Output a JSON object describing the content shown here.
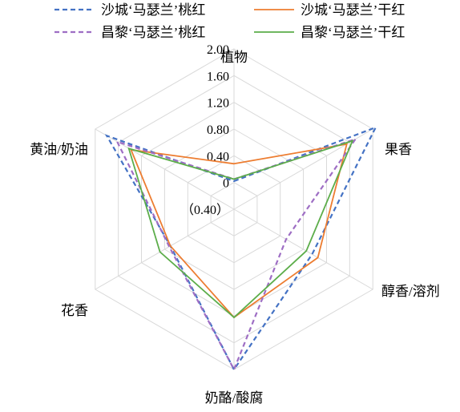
{
  "chart_data": {
    "type": "radar",
    "axes": [
      "植物",
      "果香",
      "醇香/溶剂",
      "奶酪/酸腐",
      "花香",
      "黄油/奶油"
    ],
    "ticks": [
      "2.00",
      "1.60",
      "1.20",
      "0.80",
      "0.40",
      "0",
      "（0.40）"
    ],
    "tick_values": [
      2.0,
      1.6,
      1.2,
      0.8,
      0.4,
      0,
      -0.4
    ],
    "range": [
      -0.4,
      2.0
    ],
    "legend_position": "top",
    "series": [
      {
        "name": "沙城‘马瑟兰’桃红",
        "color": "#4472c4",
        "dash": "dashed",
        "values": [
          0.02,
          2.05,
          0.95,
          2.0,
          0.7,
          1.8
        ]
      },
      {
        "name": "沙城‘马瑟兰’干红",
        "color": "#ed7d31",
        "dash": "solid",
        "values": [
          0.28,
          1.55,
          1.05,
          1.22,
          0.7,
          1.38
        ]
      },
      {
        "name": "昌黎‘马瑟兰’桃红",
        "color": "#9e6ec4",
        "dash": "dashed",
        "values": [
          0.05,
          1.7,
          0.5,
          2.0,
          0.72,
          1.62
        ]
      },
      {
        "name": "昌黎‘马瑟兰’干红",
        "color": "#5cad4a",
        "dash": "solid",
        "values": [
          0.05,
          1.65,
          0.85,
          1.22,
          0.88,
          1.42
        ]
      }
    ]
  }
}
